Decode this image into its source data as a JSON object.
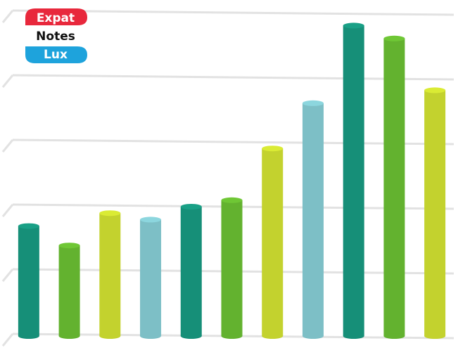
{
  "logo": {
    "line1": "Expat",
    "line2": "Notes",
    "line3": "Lux"
  },
  "chart_data": {
    "type": "bar",
    "values": [
      1.7,
      1.4,
      1.9,
      1.8,
      2.0,
      2.1,
      2.9,
      3.6,
      4.8,
      4.6,
      3.8
    ],
    "colors": [
      "#168f78",
      "#63b22f",
      "#c3d22e",
      "#7dbfc6",
      "#168f78",
      "#63b22f",
      "#c3d22e",
      "#7dbfc6",
      "#168f78",
      "#63b22f",
      "#c3d22e"
    ],
    "ylim": [
      0,
      5
    ],
    "yticks": [
      0,
      1,
      2,
      3,
      4,
      5
    ],
    "grid": true
  }
}
